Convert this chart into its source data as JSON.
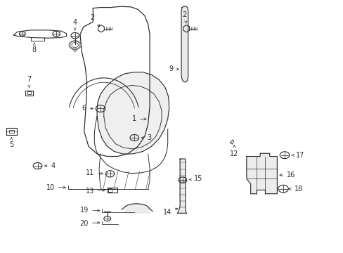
{
  "bg_color": "#ffffff",
  "line_color": "#2a2a2a",
  "fig_w": 4.89,
  "fig_h": 3.6,
  "dpi": 100,
  "lw": 0.8,
  "fs": 7.0,
  "parts_labels": {
    "1": [
      0.425,
      0.505,
      0.385,
      0.505,
      "left"
    ],
    "2a": [
      0.285,
      0.895,
      0.285,
      0.895,
      "left"
    ],
    "2b": [
      0.545,
      0.895,
      0.545,
      0.895,
      "left"
    ],
    "3": [
      0.415,
      0.455,
      0.45,
      0.455,
      "right"
    ],
    "4a": [
      0.215,
      0.855,
      0.215,
      0.87,
      "center"
    ],
    "4b": [
      0.088,
      0.335,
      0.112,
      0.335,
      "right"
    ],
    "5": [
      0.022,
      0.45,
      0.022,
      0.47,
      "center"
    ],
    "6": [
      0.255,
      0.565,
      0.283,
      0.565,
      "right"
    ],
    "7": [
      0.068,
      0.62,
      0.068,
      0.64,
      "center"
    ],
    "8": [
      0.05,
      0.855,
      0.05,
      0.875,
      "center"
    ],
    "9": [
      0.545,
      0.68,
      0.562,
      0.68,
      "right"
    ],
    "10": [
      0.168,
      0.29,
      0.2,
      0.29,
      "right"
    ],
    "11": [
      0.28,
      0.3,
      0.302,
      0.3,
      "right"
    ],
    "12": [
      0.74,
      0.415,
      0.74,
      0.395,
      "center"
    ],
    "13": [
      0.28,
      0.255,
      0.318,
      0.255,
      "right"
    ],
    "14": [
      0.57,
      0.13,
      0.548,
      0.13,
      "left"
    ],
    "15": [
      0.56,
      0.275,
      0.578,
      0.275,
      "right"
    ],
    "16": [
      0.836,
      0.33,
      0.862,
      0.33,
      "right"
    ],
    "17": [
      0.836,
      0.395,
      0.865,
      0.395,
      "right"
    ],
    "18": [
      0.836,
      0.245,
      0.865,
      0.245,
      "right"
    ],
    "19": [
      0.31,
      0.15,
      0.31,
      0.165,
      "center"
    ],
    "20": [
      0.31,
      0.118,
      0.31,
      0.118,
      "center"
    ]
  }
}
